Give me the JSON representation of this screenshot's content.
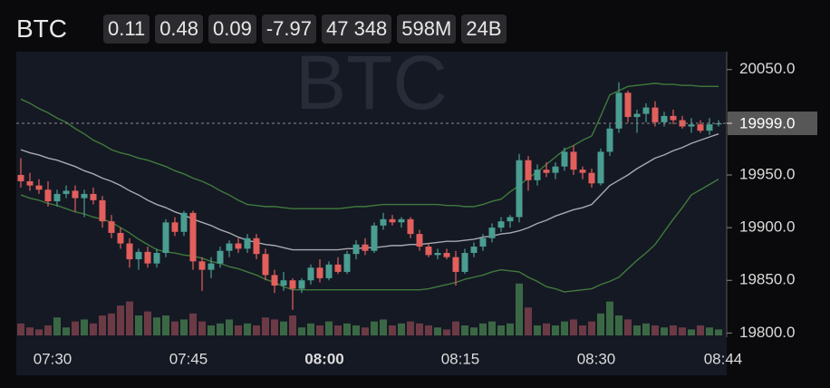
{
  "chart_data": {
    "type": "candlestick",
    "symbol": "BTC",
    "stats": [
      "0.11",
      "0.48",
      "0.09",
      "-7.97",
      "47 348",
      "598M",
      "24B"
    ],
    "categories": [
      null,
      null,
      null,
      "07:30",
      null,
      null,
      null,
      null,
      null,
      null,
      null,
      null,
      null,
      null,
      null,
      null,
      null,
      null,
      "07:45",
      null,
      null,
      null,
      null,
      null,
      null,
      null,
      null,
      null,
      null,
      null,
      null,
      null,
      null,
      "08:00",
      null,
      null,
      null,
      null,
      null,
      null,
      null,
      null,
      null,
      null,
      null,
      null,
      null,
      null,
      "08:15",
      null,
      null,
      null,
      null,
      null,
      null,
      null,
      null,
      null,
      null,
      null,
      null,
      null,
      null,
      "08:30",
      null,
      null,
      null,
      null,
      null,
      null,
      null,
      null,
      null,
      null,
      null,
      null,
      null,
      "08:44"
    ],
    "open": [
      19950,
      19944,
      19940,
      19936,
      19925,
      19932,
      19935,
      19928,
      19932,
      19926,
      19906,
      19895,
      19885,
      19870,
      19877,
      19866,
      19876,
      19905,
      19896,
      19914,
      19868,
      19860,
      19866,
      19878,
      19885,
      19880,
      19890,
      19875,
      19855,
      19845,
      19850,
      19842,
      19850,
      19862,
      19852,
      19865,
      19858,
      19875,
      19884,
      19878,
      19902,
      19908,
      19905,
      19908,
      19894,
      19882,
      19874,
      19876,
      19872,
      19858,
      19876,
      19882,
      19890,
      19900,
      19906,
      19910,
      19964,
      19945,
      19955,
      19952,
      19958,
      19972,
      19955,
      19952,
      19942,
      19972,
      19994,
      20028,
      20005,
      20008,
      20014,
      20000,
      20006,
      20002,
      19996,
      19998,
      19992,
      19998
    ],
    "high": [
      19966,
      19952,
      19946,
      19944,
      19936,
      19940,
      19940,
      19936,
      19938,
      19930,
      19912,
      19900,
      19890,
      19880,
      19882,
      19880,
      19908,
      19910,
      19916,
      19916,
      19872,
      19872,
      19882,
      19888,
      19890,
      19894,
      19894,
      19880,
      19860,
      19858,
      19852,
      19852,
      19865,
      19870,
      19868,
      19872,
      19878,
      19888,
      19890,
      19905,
      19914,
      19912,
      19910,
      19910,
      19898,
      19885,
      19880,
      19880,
      19878,
      19880,
      19886,
      19894,
      19904,
      19910,
      19912,
      19970,
      19968,
      19960,
      19962,
      19962,
      19976,
      19978,
      19958,
      19956,
      19975,
      19998,
      20038,
      20030,
      20012,
      20018,
      20020,
      20010,
      20012,
      20006,
      20004,
      20002,
      20004,
      20002
    ],
    "low": [
      19938,
      19935,
      19932,
      19920,
      19920,
      19928,
      19915,
      19910,
      19922,
      19900,
      19890,
      19880,
      19862,
      19860,
      19862,
      19862,
      19872,
      19892,
      19892,
      19860,
      19840,
      19852,
      19862,
      19872,
      19876,
      19876,
      19870,
      19850,
      19838,
      19840,
      19822,
      19838,
      19846,
      19848,
      19850,
      19856,
      19856,
      19870,
      19874,
      19876,
      19898,
      19902,
      19900,
      19890,
      19878,
      19872,
      19870,
      19870,
      19845,
      19856,
      19872,
      19878,
      19886,
      19896,
      19900,
      19905,
      19935,
      19940,
      19948,
      19946,
      19954,
      19950,
      19946,
      19938,
      19940,
      19968,
      19990,
      20000,
      19990,
      20000,
      19996,
      19996,
      19998,
      19994,
      19990,
      19990,
      19988,
      19996
    ],
    "close": [
      19944,
      19940,
      19936,
      19925,
      19932,
      19935,
      19928,
      19932,
      19926,
      19906,
      19895,
      19885,
      19870,
      19877,
      19866,
      19876,
      19905,
      19896,
      19914,
      19868,
      19860,
      19866,
      19878,
      19885,
      19880,
      19890,
      19875,
      19855,
      19845,
      19850,
      19842,
      19850,
      19862,
      19852,
      19865,
      19858,
      19875,
      19884,
      19878,
      19902,
      19908,
      19905,
      19908,
      19894,
      19882,
      19874,
      19876,
      19872,
      19858,
      19876,
      19882,
      19890,
      19900,
      19906,
      19910,
      19964,
      19945,
      19955,
      19952,
      19958,
      19972,
      19955,
      19952,
      19942,
      19972,
      19994,
      20028,
      20005,
      20008,
      20014,
      20000,
      20006,
      20002,
      19996,
      19998,
      19992,
      19998,
      19999
    ],
    "volume": [
      12,
      8,
      6,
      10,
      18,
      8,
      14,
      16,
      12,
      20,
      22,
      30,
      34,
      20,
      24,
      18,
      20,
      14,
      16,
      22,
      14,
      10,
      12,
      16,
      10,
      12,
      10,
      18,
      16,
      14,
      20,
      8,
      12,
      10,
      14,
      10,
      12,
      10,
      8,
      14,
      16,
      10,
      12,
      14,
      12,
      10,
      8,
      6,
      14,
      10,
      8,
      12,
      14,
      10,
      12,
      52,
      28,
      10,
      12,
      10,
      14,
      16,
      10,
      14,
      22,
      34,
      20,
      16,
      10,
      12,
      10,
      8,
      10,
      8,
      6,
      10,
      8,
      6
    ],
    "bands": [
      {
        "color": "#3f7a3c",
        "values": [
          20022,
          20018,
          20013,
          20009,
          20004,
          20000,
          19994,
          19989,
          19983,
          19979,
          19974,
          19971,
          19969,
          19966,
          19964,
          19961,
          19958,
          19954,
          19951,
          19947,
          19944,
          19940,
          19935,
          19931,
          19926,
          19922,
          19921,
          19920,
          19920,
          19919,
          19918,
          19918,
          19918,
          19918,
          19918,
          19918,
          19919,
          19920,
          19920,
          19921,
          19922,
          19922,
          19922,
          19922,
          19922,
          19922,
          19922,
          19921,
          19921,
          19920,
          19920,
          19922,
          19925,
          19927,
          19934,
          19940,
          19947,
          19953,
          19960,
          19967,
          19974,
          19978,
          19983,
          19987,
          20006,
          20026,
          20030,
          20034,
          20035,
          20036,
          20037,
          20036,
          20036,
          20035,
          20035,
          20034,
          20034,
          20034
        ]
      },
      {
        "color": "#a9a9b0",
        "values": [
          19974,
          19971,
          19969,
          19966,
          19964,
          19961,
          19958,
          19954,
          19951,
          19947,
          19944,
          19940,
          19935,
          19931,
          19926,
          19922,
          19919,
          19915,
          19912,
          19908,
          19905,
          19902,
          19898,
          19895,
          19891,
          19888,
          19886,
          19884,
          19883,
          19881,
          19879,
          19879,
          19879,
          19879,
          19879,
          19879,
          19880,
          19880,
          19881,
          19881,
          19882,
          19883,
          19883,
          19884,
          19884,
          19885,
          19886,
          19887,
          19887,
          19888,
          19889,
          19891,
          19892,
          19894,
          19895,
          19897,
          19900,
          19904,
          19907,
          19911,
          19914,
          19917,
          19919,
          19922,
          19931,
          19940,
          19945,
          19950,
          19956,
          19961,
          19966,
          19969,
          19973,
          19976,
          19980,
          19983,
          19986,
          19989
        ]
      },
      {
        "color": "#3f7a3c",
        "values": [
          19931,
          19928,
          19926,
          19923,
          19921,
          19918,
          19915,
          19913,
          19910,
          19908,
          19905,
          19900,
          19895,
          19889,
          19884,
          19879,
          19877,
          19876,
          19874,
          19873,
          19871,
          19868,
          19866,
          19863,
          19861,
          19858,
          19855,
          19851,
          19848,
          19844,
          19841,
          19841,
          19841,
          19841,
          19841,
          19841,
          19841,
          19841,
          19841,
          19841,
          19841,
          19841,
          19841,
          19841,
          19841,
          19842,
          19844,
          19846,
          19848,
          19851,
          19853,
          19855,
          19858,
          19860,
          19859,
          19858,
          19853,
          19849,
          19844,
          19842,
          19839,
          19840,
          19841,
          19842,
          19846,
          19849,
          19853,
          19861,
          19869,
          19876,
          19884,
          19896,
          19908,
          19919,
          19931,
          19936,
          19941,
          19946
        ]
      }
    ],
    "up_color": "#4a9d91",
    "down_color": "#e25f5c",
    "up_volume_color": "#3b6844",
    "down_volume_color": "#6b3a45",
    "last_price": {
      "value": 19999,
      "label": "19999.0"
    },
    "ylim": [
      19796,
      20067
    ],
    "yticks": [
      {
        "value": 19800,
        "label": "19800.0"
      },
      {
        "value": 19850,
        "label": "19850.0"
      },
      {
        "value": 19900,
        "label": "19900.0"
      },
      {
        "value": 19950,
        "label": "19950.0"
      },
      {
        "value": 20050,
        "label": "20050.0"
      }
    ]
  }
}
